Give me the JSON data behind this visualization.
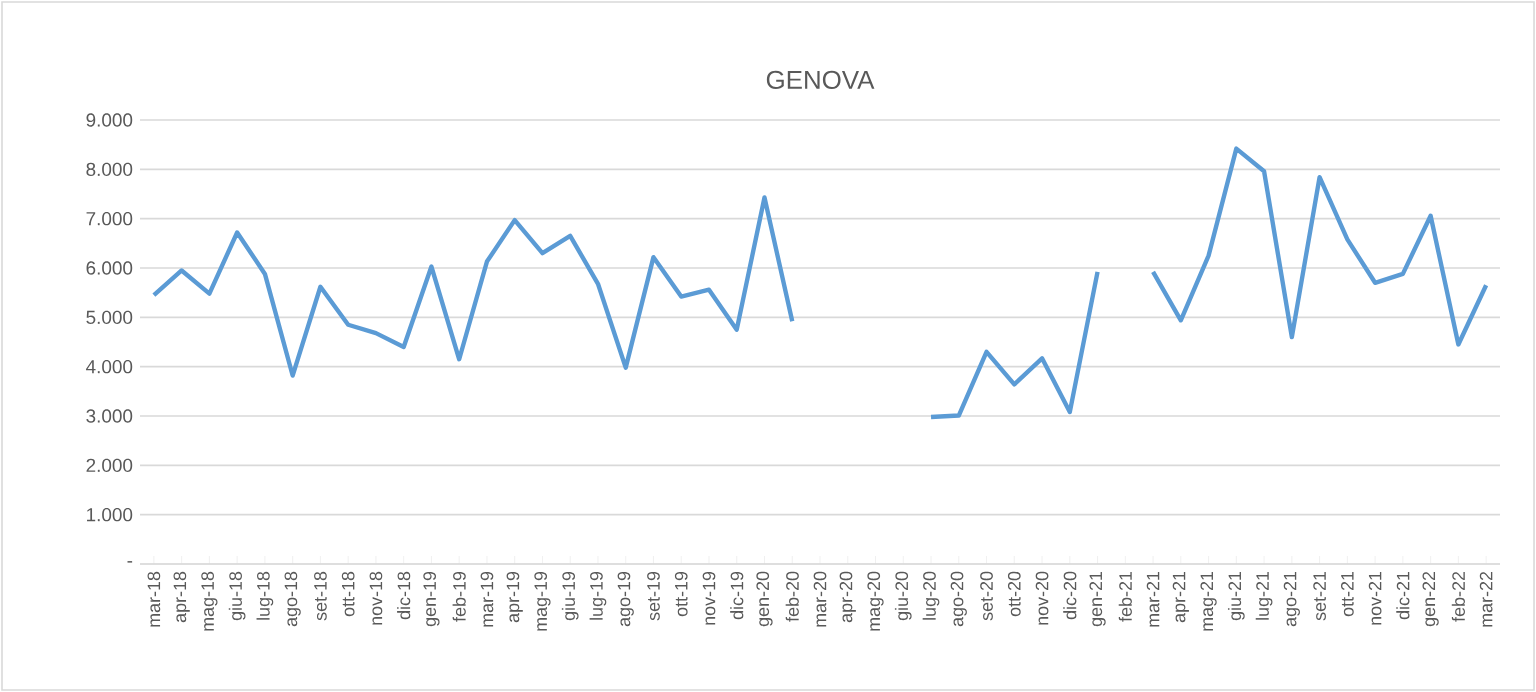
{
  "chart_data": {
    "type": "line",
    "title": "GENOVA",
    "categories": [
      "mar-18",
      "apr-18",
      "mag-18",
      "giu-18",
      "lug-18",
      "ago-18",
      "set-18",
      "ott-18",
      "nov-18",
      "dic-18",
      "gen-19",
      "feb-19",
      "mar-19",
      "apr-19",
      "mag-19",
      "giu-19",
      "lug-19",
      "ago-19",
      "set-19",
      "ott-19",
      "nov-19",
      "dic-19",
      "gen-20",
      "feb-20",
      "mar-20",
      "apr-20",
      "mag-20",
      "giu-20",
      "lug-20",
      "ago-20",
      "set-20",
      "ott-20",
      "nov-20",
      "dic-20",
      "gen-21",
      "feb-21",
      "mar-21",
      "apr-21",
      "mag-21",
      "giu-21",
      "lug-21",
      "ago-21",
      "set-21",
      "ott-21",
      "nov-21",
      "dic-21",
      "gen-22",
      "feb-22",
      "mar-22"
    ],
    "series": [
      {
        "color": "#5b9bd5",
        "values": [
          5450,
          5950,
          5480,
          6720,
          5880,
          3820,
          5620,
          4850,
          4680,
          4400,
          6030,
          4150,
          6130,
          6970,
          6300,
          6650,
          5680,
          3980,
          6220,
          5420,
          5560,
          4750,
          7430,
          4920,
          null,
          null,
          null,
          null,
          2980,
          3010,
          4300,
          3640,
          4170,
          3080,
          5920,
          null,
          5920,
          4940,
          6250,
          8420,
          7960,
          4600,
          7840,
          6580,
          5700,
          5880,
          7060,
          4450,
          5650
        ]
      }
    ],
    "ylim": [
      0,
      9000
    ],
    "yticks": [
      {
        "value": 0,
        "label": "-"
      },
      {
        "value": 1000,
        "label": "1.000"
      },
      {
        "value": 2000,
        "label": "2.000"
      },
      {
        "value": 3000,
        "label": "3.000"
      },
      {
        "value": 4000,
        "label": "4.000"
      },
      {
        "value": 5000,
        "label": "5.000"
      },
      {
        "value": 6000,
        "label": "6.000"
      },
      {
        "value": 7000,
        "label": "7.000"
      },
      {
        "value": 8000,
        "label": "8.000"
      },
      {
        "value": 9000,
        "label": "9.000"
      }
    ],
    "grid": "y",
    "marker": "none",
    "line_style": "solid"
  }
}
